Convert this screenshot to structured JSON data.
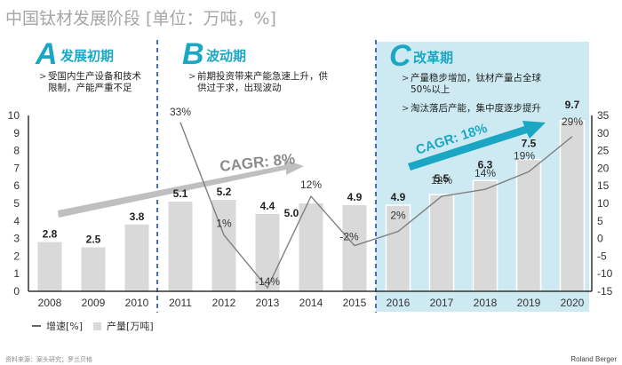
{
  "title": "中国钛材发展阶段 [单位：万吨，%]",
  "phases": [
    {
      "letter": "A",
      "name": "发展初期",
      "bullets": [
        "受国内生产设备和技术\n限制，产能严重不足"
      ]
    },
    {
      "letter": "B",
      "name": "波动期",
      "bullets": [
        "前期投资带来产能急速上升，供\n供过于求，出现波动"
      ]
    },
    {
      "letter": "C",
      "name": "改革期",
      "bullets": [
        "产量稳步增加，钛材产量占全球\n50%以上",
        "淘汰落后产能，集中度逐步提升"
      ]
    }
  ],
  "colors": {
    "accent": "#1ba7c4",
    "panel": "#cdeaf3",
    "bar": "#d9d9d9",
    "line": "#7f7f7f",
    "cagr_gray": "#bfbfbf",
    "divider": "#1f4e9a"
  },
  "chart_data": {
    "type": "bar+line",
    "title": "中国钛材发展阶段 [单位：万吨，%]",
    "categories": [
      "2008",
      "2009",
      "2010",
      "2011",
      "2012",
      "2013",
      "2014",
      "2015",
      "2016",
      "2017",
      "2018",
      "2019",
      "2020"
    ],
    "series": [
      {
        "name": "产量[万吨]",
        "type": "bar",
        "axis": "left",
        "values": [
          2.8,
          2.5,
          3.8,
          5.1,
          5.2,
          4.4,
          5.0,
          4.9,
          4.9,
          5.5,
          6.3,
          7.5,
          9.7
        ],
        "labels": [
          "2.8",
          "2.5",
          "3.8",
          "5.1",
          "5.2",
          "4.4",
          "5.0",
          "4.9",
          "4.9",
          "5.5",
          "6.3",
          "7.5",
          "9.7"
        ]
      },
      {
        "name": "增速[%]",
        "type": "line",
        "axis": "right",
        "values": [
          null,
          null,
          null,
          33,
          1,
          -14,
          12,
          -2,
          2,
          12,
          14,
          19,
          29
        ],
        "labels": [
          "",
          "",
          "",
          "33%",
          "1%",
          "-14%",
          "12%",
          "-2%",
          "2%",
          "12%",
          "14%",
          "19%",
          "29%"
        ]
      }
    ],
    "left_axis": {
      "ylim": [
        0,
        10
      ],
      "ticks": [
        "0",
        "1",
        "2",
        "3",
        "4",
        "5",
        "6",
        "7",
        "8",
        "9",
        "10"
      ]
    },
    "right_axis": {
      "ylim": [
        -15,
        35
      ],
      "ticks": [
        "-15",
        "-10",
        "-5",
        "0",
        "5",
        "10",
        "15",
        "20",
        "25",
        "30",
        "35"
      ]
    },
    "annotations": [
      {
        "text": "CAGR: 8%",
        "span": [
          "2008",
          "2015"
        ]
      },
      {
        "text": "CAGR: 18%",
        "span": [
          "2016",
          "2020"
        ]
      }
    ],
    "legend": {
      "position": "bottom-left",
      "entries": [
        "增速[%]",
        "产量[万吨]"
      ]
    },
    "grid": false
  },
  "footer": {
    "source": "资料来源：案头研究；罗兰贝格",
    "brand": "Roland Berger"
  }
}
